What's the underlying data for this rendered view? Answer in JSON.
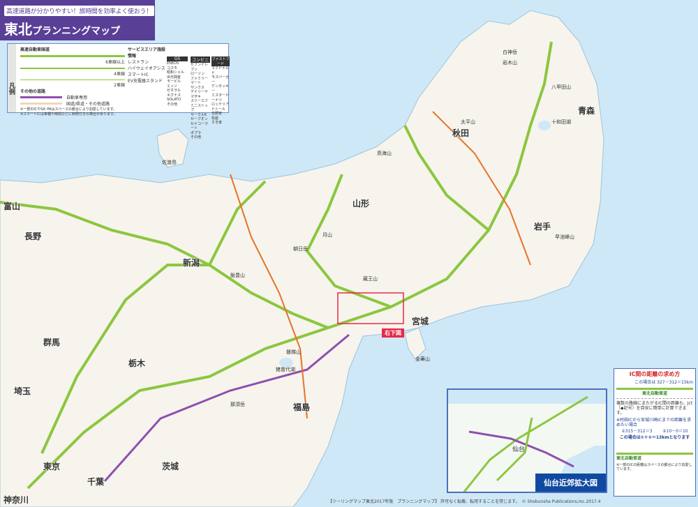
{
  "header": {
    "subtitle": "高速道路が分かりやすい！旅時間を効率よく使おう！",
    "title_main": "東北",
    "title_rest": "プランニングマップ"
  },
  "legend": {
    "side_label": "凡例",
    "expressway_heading": "高速自動車国道",
    "lanes": [
      "6車線以上",
      "4車線",
      "2車線"
    ],
    "other_roads_heading": "その他の道路",
    "other_roads": [
      "自動車専用",
      "国道/県道・その他道路"
    ],
    "notes": [
      "※一部のICやSA･PAはスペースの都合により割愛しています。",
      "※スマートICは車種や時間などに制限付きの場合があります。"
    ],
    "service_heading": "サービスエリア施設情報",
    "services": [
      "レストラン",
      "ハイウェイオアシス",
      "スマートIC",
      "EV充電器スタンド"
    ],
    "gs_heading": "GS",
    "gs": [
      "ENEOS",
      "コスモ",
      "昭和シェル",
      "出光興産",
      "モービル",
      "エッソ",
      "ゼネラル",
      "キグナス",
      "SOLATO",
      "その他"
    ],
    "conv_heading": "コンビニ",
    "conv": [
      "セブンイレブン",
      "ローソン",
      "ファミリーマート",
      "サンクス",
      "デイリーヤマザキ",
      "スリーエフ",
      "ミニストップ",
      "サークルK",
      "セーブオン",
      "セイコーマート",
      "ポプラ",
      "その他"
    ],
    "ff_heading": "ファストフード",
    "ff": [
      "マクドナルド",
      "モスバーガー",
      "ケンタッキー",
      "ミスタードーナツ",
      "ロッテリア",
      "ドトール",
      "吉野家",
      "松屋",
      "すき家"
    ]
  },
  "prefectures": [
    "青森",
    "秋田",
    "岩手",
    "山形",
    "宮城",
    "新潟",
    "福島",
    "富山",
    "長野",
    "群馬",
    "栃木",
    "埼玉",
    "茨城",
    "東京",
    "千葉",
    "神奈川"
  ],
  "places": [
    "佐渡島",
    "八甲田山",
    "岩木山",
    "白神岳",
    "早池峰山",
    "鳥海山",
    "月山",
    "蔵王山",
    "朝日岳",
    "飯豊山",
    "磐梯山",
    "那須岳",
    "金華山",
    "太平山",
    "十和田湖",
    "猪苗代湖"
  ],
  "inset_marker": "右下図",
  "inset": {
    "title": "仙台近郊拡大図",
    "city": "仙台"
  },
  "ic_box": {
    "title": "IC間の距離の求め方",
    "line1": "この場合は 327－312＝15km",
    "road": "東北自動車道",
    "para": "複数の路線にまたがるIC間の距離も、Jct（◆記号）を目安に簡単に計算できます。",
    "example": "※村田ICから宮城川崎ICまでの距離を求めたい場合",
    "calc1": "①315－312＝3",
    "calc2": "②10－0＝10",
    "result": "この場合は①＋②＝13kmとなります",
    "note": "※一部のICの距離はスペースの都合により割愛しています。"
  },
  "footer": {
    "text": "【ツーリングマップ東北2017年版　プランニングマップ】 許可なく転載、転用することを禁じます。",
    "copyright": "© Shobunsha Publications,Inc.2017.4"
  },
  "colors": {
    "sea": "#cfe8f7",
    "land": "#f6f4ec",
    "title_bg": "#5a3f97",
    "expressway": "#8cc63f",
    "toll": "#8e4fb0",
    "national": "#e8722a"
  }
}
